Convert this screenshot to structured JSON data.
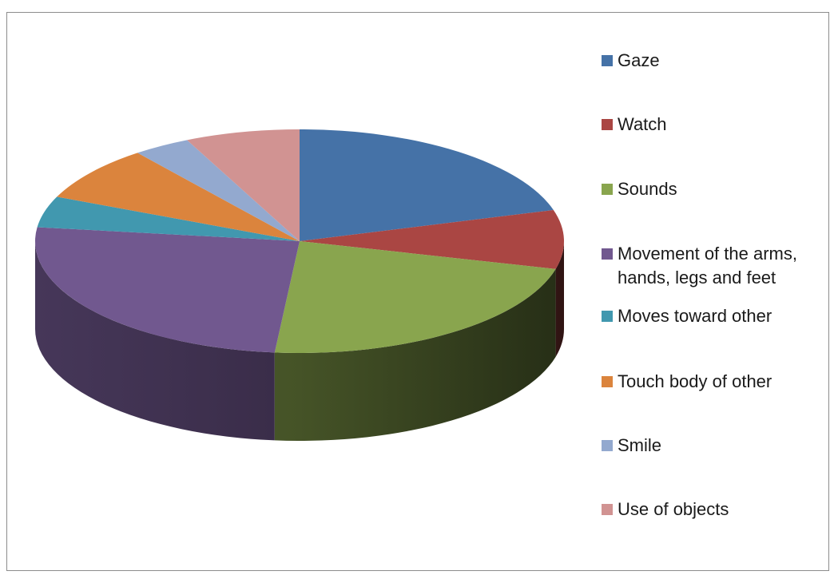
{
  "chart_data": {
    "type": "pie",
    "title": "",
    "style": "3d",
    "legend_position": "right",
    "slices": [
      {
        "label": "Gaze",
        "value": 20.5,
        "color": "#4572A7"
      },
      {
        "label": "Watch",
        "value": 8.5,
        "color": "#AA4643"
      },
      {
        "label": "Sounds",
        "value": 22.5,
        "color": "#89A54E"
      },
      {
        "label": "Movement of the arms, hands, legs and feet",
        "label_lines": [
          "Movement of the arms,",
          "hands, legs and feet"
        ],
        "value": 25.5,
        "color": "#71588F"
      },
      {
        "label": "Moves toward other",
        "value": 4.5,
        "color": "#4198AF"
      },
      {
        "label": "Touch body of other",
        "value": 8.0,
        "color": "#DB843D"
      },
      {
        "label": "Smile",
        "value": 3.5,
        "color": "#93A9CF"
      },
      {
        "label": "Use of objects",
        "value": 7.0,
        "color": "#D19392"
      }
    ]
  }
}
